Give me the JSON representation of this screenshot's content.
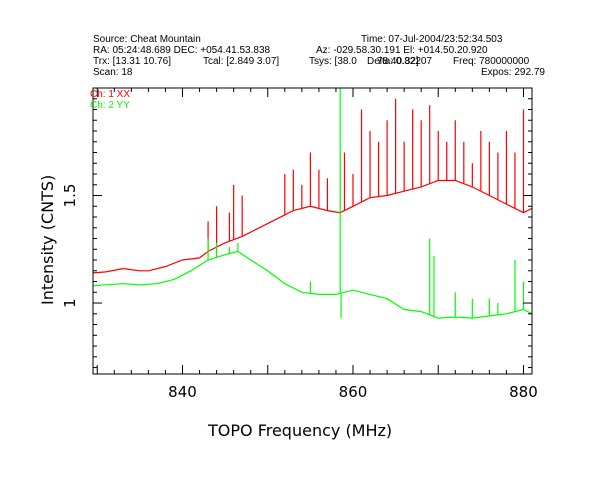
{
  "header": {
    "source": "Source: Cheat Mountain",
    "time": "Time: 07-Jul-2004/23:52:34.503",
    "ra_dec": "RA: 05:24:48.689 DEC: +054.41.53.838",
    "az_el": "Az: -029.58.30.191 El: +014.50.20.920",
    "trx": "Trx: [13.31 10.76]",
    "tcal": "Tcal: [2.849 3.07]",
    "tsys": "Tsys: [38.0",
    "delta": "Delta: 0.82207",
    "tsys_overlap": "78 40.32]",
    "freq": "Freq: 780000000",
    "scan": "Scan: 18",
    "expos": "Expos: 292.79"
  },
  "legend": {
    "ch1": "Ch: 1 XX",
    "ch2": "Ch: 2 YY"
  },
  "chart_data": {
    "type": "line",
    "xlabel": "TOPO Frequency (MHz)",
    "ylabel": "Intensity (CNTS)",
    "xlim": [
      829.5,
      881
    ],
    "ylim": [
      0.67,
      2.0
    ],
    "x_ticks": [
      840,
      860,
      880
    ],
    "y_ticks": [
      1,
      1.5
    ],
    "colors": {
      "ch1": "#ff0000",
      "ch2": "#00ff00"
    },
    "series": [
      {
        "name": "Ch: 1 XX",
        "color": "#ff0000",
        "x": [
          829.5,
          831,
          833,
          835,
          836,
          838,
          840,
          842,
          843,
          845,
          847,
          849,
          851,
          853,
          855,
          857,
          858.5,
          860,
          862,
          864,
          866,
          868,
          870,
          872,
          874,
          876,
          878,
          880,
          881
        ],
        "y": [
          1.14,
          1.145,
          1.16,
          1.15,
          1.15,
          1.17,
          1.2,
          1.21,
          1.24,
          1.28,
          1.31,
          1.35,
          1.39,
          1.43,
          1.45,
          1.43,
          1.42,
          1.45,
          1.49,
          1.5,
          1.52,
          1.54,
          1.57,
          1.57,
          1.54,
          1.5,
          1.46,
          1.42,
          1.44
        ],
        "spikes": [
          [
            843,
            1.38
          ],
          [
            844,
            1.45
          ],
          [
            845.5,
            1.42
          ],
          [
            846,
            1.55
          ],
          [
            847,
            1.5
          ],
          [
            852,
            1.6
          ],
          [
            853,
            1.62
          ],
          [
            854,
            1.55
          ],
          [
            855,
            1.7
          ],
          [
            856,
            1.62
          ],
          [
            857,
            1.58
          ],
          [
            859,
            1.7
          ],
          [
            860,
            1.6
          ],
          [
            861,
            1.9
          ],
          [
            862,
            1.8
          ],
          [
            863,
            1.75
          ],
          [
            864,
            1.85
          ],
          [
            865,
            1.95
          ],
          [
            866,
            1.75
          ],
          [
            867,
            1.9
          ],
          [
            868,
            1.85
          ],
          [
            869,
            1.92
          ],
          [
            870,
            1.8
          ],
          [
            871,
            1.75
          ],
          [
            872,
            1.85
          ],
          [
            873,
            1.75
          ],
          [
            874,
            1.65
          ],
          [
            875,
            1.8
          ],
          [
            876,
            1.75
          ],
          [
            877,
            1.7
          ],
          [
            878,
            1.8
          ],
          [
            879,
            1.7
          ],
          [
            880,
            1.9
          ]
        ]
      },
      {
        "name": "Ch: 2 YY",
        "color": "#00ff00",
        "x": [
          829.5,
          831,
          833,
          835,
          837,
          839,
          841,
          843,
          845,
          846.5,
          848,
          850,
          852,
          854,
          856,
          858,
          860,
          862,
          864,
          866,
          868,
          870,
          872,
          874,
          876,
          878,
          880,
          881
        ],
        "y": [
          1.08,
          1.085,
          1.09,
          1.085,
          1.09,
          1.11,
          1.15,
          1.2,
          1.225,
          1.24,
          1.2,
          1.15,
          1.09,
          1.05,
          1.04,
          1.04,
          1.06,
          1.04,
          1.02,
          0.97,
          0.96,
          0.93,
          0.935,
          0.93,
          0.94,
          0.95,
          0.97,
          0.95
        ],
        "spikes": [
          [
            843,
            1.3
          ],
          [
            844,
            1.28
          ],
          [
            845.5,
            1.26
          ],
          [
            846.5,
            1.28
          ],
          [
            855,
            1.1
          ],
          [
            858.5,
            2.0
          ],
          [
            858.6,
            0.93
          ],
          [
            869,
            1.3
          ],
          [
            869.5,
            1.22
          ],
          [
            872,
            1.05
          ],
          [
            874,
            1.02
          ],
          [
            876,
            1.02
          ],
          [
            877,
            1.0
          ],
          [
            879,
            1.2
          ],
          [
            880,
            1.1
          ]
        ]
      }
    ]
  }
}
